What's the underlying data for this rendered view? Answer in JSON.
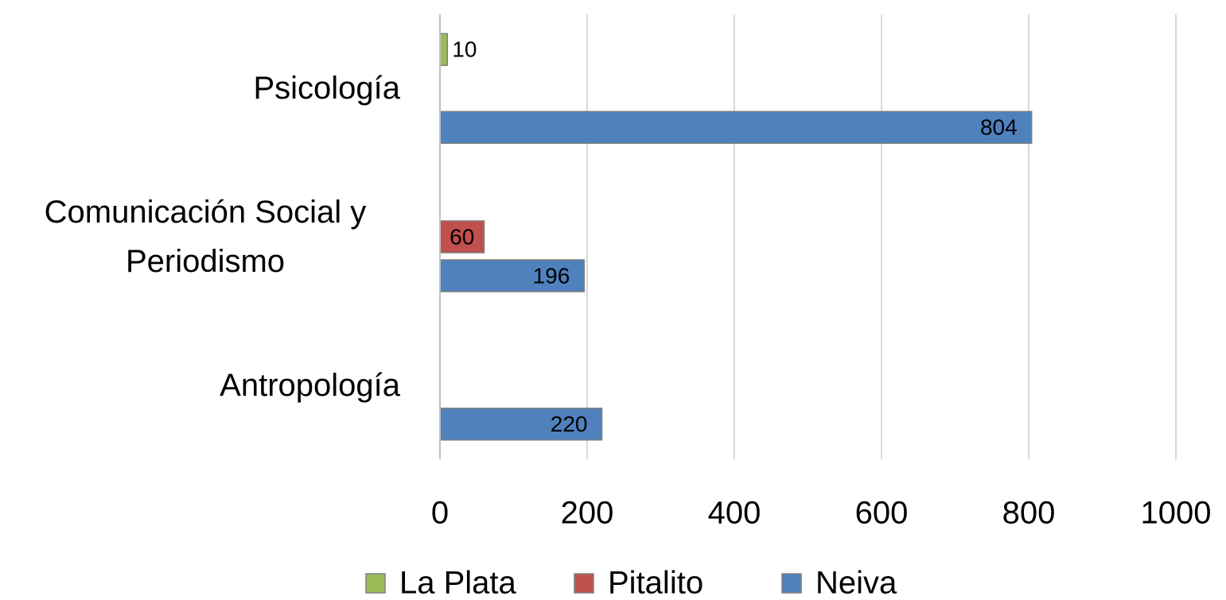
{
  "chart_data": {
    "type": "bar",
    "orientation": "horizontal",
    "categories": [
      "Antropología",
      "Comunicación Social y Periodismo",
      "Psicología"
    ],
    "series": [
      {
        "name": "La Plata",
        "color": "#9bbb59",
        "values": [
          null,
          null,
          10
        ]
      },
      {
        "name": "Pitalito",
        "color": "#c0504d",
        "values": [
          null,
          60,
          null
        ]
      },
      {
        "name": "Neiva",
        "color": "#4f81bd",
        "values": [
          220,
          196,
          804
        ]
      }
    ],
    "xlim": [
      0,
      1000
    ],
    "xticks": [
      0,
      200,
      400,
      600,
      800,
      1000
    ],
    "grid": true,
    "legend": "bottom"
  }
}
